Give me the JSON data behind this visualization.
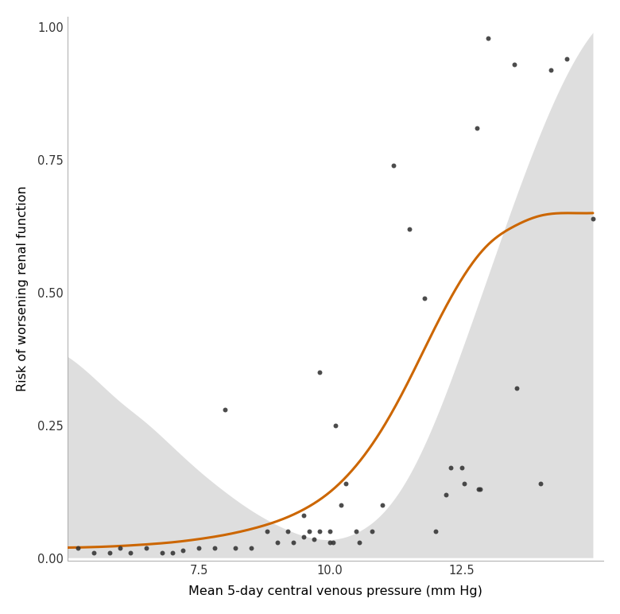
{
  "scatter_x": [
    5.2,
    5.5,
    5.8,
    6.0,
    6.2,
    6.5,
    6.8,
    7.0,
    7.2,
    7.5,
    7.8,
    8.0,
    8.2,
    8.5,
    8.8,
    9.0,
    9.2,
    9.3,
    9.5,
    9.5,
    9.6,
    9.7,
    9.8,
    9.8,
    10.0,
    10.0,
    10.05,
    10.1,
    10.2,
    10.3,
    10.5,
    10.55,
    10.8,
    11.0,
    11.2,
    11.5,
    11.8,
    12.0,
    12.2,
    12.3,
    12.5,
    12.55,
    12.8,
    12.82,
    12.85,
    13.0,
    13.5,
    13.55,
    14.0,
    14.2,
    14.5,
    15.0
  ],
  "scatter_y": [
    0.02,
    0.01,
    0.01,
    0.02,
    0.01,
    0.02,
    0.01,
    0.01,
    0.015,
    0.02,
    0.02,
    0.28,
    0.02,
    0.02,
    0.05,
    0.03,
    0.05,
    0.03,
    0.04,
    0.08,
    0.05,
    0.035,
    0.05,
    0.35,
    0.03,
    0.05,
    0.03,
    0.25,
    0.1,
    0.14,
    0.05,
    0.03,
    0.05,
    0.1,
    0.74,
    0.62,
    0.49,
    0.05,
    0.12,
    0.17,
    0.17,
    0.14,
    0.81,
    0.13,
    0.13,
    0.98,
    0.93,
    0.32,
    0.14,
    0.92,
    0.94,
    0.64
  ],
  "curve_knots_x": [
    5.0,
    5.5,
    6.0,
    6.5,
    7.0,
    7.5,
    8.0,
    8.5,
    9.0,
    9.5,
    10.0,
    10.5,
    11.0,
    11.5,
    12.0,
    12.5,
    13.0,
    13.5,
    14.0,
    14.5,
    15.0
  ],
  "curve_knots_y": [
    0.02,
    0.021,
    0.023,
    0.026,
    0.03,
    0.036,
    0.044,
    0.055,
    0.07,
    0.092,
    0.125,
    0.175,
    0.245,
    0.335,
    0.435,
    0.525,
    0.59,
    0.625,
    0.645,
    0.65,
    0.65
  ],
  "ci_upper_knots_x": [
    5.0,
    5.5,
    6.0,
    6.5,
    7.0,
    7.5,
    8.0,
    8.5,
    9.0,
    9.5,
    10.0,
    10.5,
    11.0,
    11.5,
    12.0,
    12.5,
    13.0,
    13.5,
    14.0,
    14.5,
    15.0
  ],
  "ci_upper_knots_y": [
    0.38,
    0.34,
    0.295,
    0.255,
    0.21,
    0.165,
    0.125,
    0.09,
    0.062,
    0.042,
    0.035,
    0.048,
    0.085,
    0.155,
    0.26,
    0.39,
    0.53,
    0.67,
    0.8,
    0.91,
    0.99
  ],
  "ci_lower_knots_x": [
    5.0,
    5.5,
    6.0,
    6.5,
    7.0,
    7.5,
    8.0,
    8.5,
    9.0,
    9.5,
    10.0,
    10.5,
    11.0,
    11.5,
    12.0,
    12.5,
    13.0,
    13.5,
    14.0,
    14.5,
    15.0
  ],
  "ci_lower_knots_y": [
    0.001,
    0.001,
    0.001,
    0.001,
    0.001,
    0.001,
    0.001,
    0.001,
    0.001,
    0.001,
    0.001,
    0.001,
    0.001,
    0.001,
    0.001,
    0.001,
    0.001,
    0.001,
    0.001,
    0.001,
    0.001
  ],
  "xlim": [
    5.0,
    15.2
  ],
  "ylim": [
    -0.005,
    1.02
  ],
  "xlabel": "Mean 5-day central venous pressure (mm Hg)",
  "ylabel": "Risk of worsening renal function",
  "scatter_color": "#333333",
  "curve_color": "#cc6600",
  "ci_color": "#dedede",
  "bg_color": "#ffffff",
  "xticks": [
    7.5,
    10.0,
    12.5
  ],
  "yticks": [
    0.0,
    0.25,
    0.5,
    0.75,
    1.0
  ]
}
